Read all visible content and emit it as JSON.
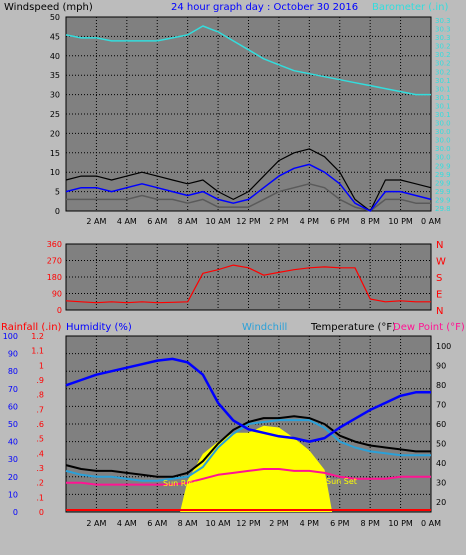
{
  "colors": {
    "background": "#bcbcbc",
    "plot_background": "#808080",
    "grid": "#000000",
    "windspeed_avg": "#0000ff",
    "windspeed_gust": "#000000",
    "windspeed_low": "#5a5a5a",
    "barometer": "#33dddd",
    "wind_direction": "#ff0000",
    "humidity": "#0000ff",
    "windchill": "#2aa0d8",
    "temperature": "#000000",
    "dew_point": "#ff1493",
    "rainfall": "#ff0000",
    "solar": "#ffff00"
  },
  "header": {
    "windspeed_label": "Windspeed (mph)",
    "date_title": "24 hour graph day : October 30 2016",
    "barometer_label": "Barometer (.in)"
  },
  "labels": {
    "rainfall": "Rainfall (.in)",
    "humidity": "Humidity (%)",
    "windchill": "Windchill",
    "temperature": "Temperature (°F)",
    "dew_point": "Dew Point (°F)",
    "sunrise": "Sun Rise",
    "sunset": "Sun Set"
  },
  "chart_data": [
    {
      "type": "line",
      "name": "windspeed",
      "ylabel": "Windspeed (mph)",
      "ylim": [
        0,
        50
      ],
      "y_ticks": [
        0,
        5,
        10,
        15,
        20,
        25,
        30,
        35,
        40,
        45,
        50
      ],
      "x_ticks": [
        "2 AM",
        "4 AM",
        "6 AM",
        "8 AM",
        "10 AM",
        "12 PM",
        "2 PM",
        "4 PM",
        "6 PM",
        "8 PM",
        "10 PM",
        "0 AM"
      ],
      "x_hours": [
        0,
        1,
        2,
        3,
        4,
        5,
        6,
        7,
        8,
        9,
        10,
        11,
        12,
        13,
        14,
        15,
        16,
        17,
        18,
        19,
        20,
        21,
        22,
        23,
        24
      ],
      "series": [
        {
          "values": [
            5,
            6,
            6,
            5,
            6,
            7,
            6,
            5,
            4,
            5,
            3,
            2,
            3,
            6,
            9,
            11,
            12,
            10,
            7,
            2,
            0,
            5,
            5,
            4,
            3
          ]
        },
        {
          "values": [
            8,
            9,
            9,
            8,
            9,
            10,
            9,
            8,
            7,
            8,
            5,
            3,
            5,
            9,
            13,
            15,
            16,
            14,
            10,
            3,
            0,
            8,
            8,
            7,
            6
          ]
        },
        {
          "values": [
            3,
            3,
            3,
            3,
            3,
            4,
            3,
            3,
            2,
            3,
            1,
            1,
            1,
            3,
            5,
            6,
            7,
            6,
            3,
            1,
            0,
            3,
            3,
            2,
            2
          ]
        },
        {
          "values": [
            30.39,
            30.38,
            30.38,
            30.37,
            30.37,
            30.37,
            30.37,
            30.38,
            30.39,
            30.42,
            30.4,
            30.37,
            30.34,
            30.31,
            30.29,
            30.27,
            30.26,
            30.25,
            30.24,
            30.23,
            30.22,
            30.21,
            30.2,
            30.19,
            30.19
          ]
        }
      ],
      "y2_ticks": [
        "29.8",
        "29.9",
        "29.9",
        "29.9",
        "29.9",
        "29.9",
        "30.0",
        "30.0",
        "30.0",
        "30.0",
        "30.0",
        "30.1",
        "30.1",
        "30.1",
        "30.1",
        "30.1",
        "30.2",
        "30.2",
        "30.2",
        "30.2",
        "30.3",
        "30.3",
        "30.3"
      ],
      "y2lim": [
        29.8,
        30.45
      ]
    },
    {
      "type": "line",
      "name": "wind_direction",
      "y_ticks": [
        0,
        90,
        180,
        270,
        360
      ],
      "ylim": [
        0,
        360
      ],
      "compass_ticks": [
        "N",
        "W",
        "S",
        "E",
        "N"
      ],
      "x_hours": [
        0,
        1,
        2,
        3,
        4,
        5,
        6,
        7,
        8,
        9,
        10,
        11,
        12,
        13,
        14,
        15,
        16,
        17,
        18,
        19,
        20,
        21,
        22,
        23,
        24
      ],
      "series": [
        {
          "values": [
            50,
            45,
            40,
            45,
            40,
            45,
            40,
            42,
            45,
            200,
            220,
            245,
            230,
            190,
            205,
            220,
            230,
            235,
            230,
            230,
            60,
            45,
            50,
            45,
            45
          ]
        }
      ]
    },
    {
      "type": "line",
      "name": "temperature_humidity",
      "x_ticks": [
        "2 AM",
        "4 AM",
        "6 AM",
        "8 AM",
        "10 AM",
        "12 PM",
        "2 PM",
        "4 PM",
        "6 PM",
        "8 PM",
        "10 PM",
        "0 AM"
      ],
      "rainfall_ticks": [
        "0",
        ".1",
        ".2",
        ".3",
        ".4",
        ".5",
        ".6",
        ".7",
        ".8",
        ".9",
        "1",
        "1.1",
        "1.2"
      ],
      "humidity_ticks": [
        0,
        10,
        20,
        30,
        40,
        50,
        60,
        70,
        80,
        90,
        100
      ],
      "temp_ticks": [
        20,
        30,
        40,
        50,
        60,
        70,
        80,
        90,
        100
      ],
      "humidity_ylim": [
        0,
        100
      ],
      "temp_ylim": [
        15,
        105
      ],
      "x_hours": [
        0,
        1,
        2,
        3,
        4,
        5,
        6,
        7,
        8,
        9,
        10,
        11,
        12,
        13,
        14,
        15,
        16,
        17,
        18,
        19,
        20,
        21,
        22,
        23,
        24
      ],
      "series": [
        {
          "values": [
            72,
            75,
            78,
            80,
            82,
            84,
            86,
            87,
            85,
            78,
            62,
            52,
            47,
            45,
            43,
            42,
            40,
            42,
            48,
            53,
            58,
            62,
            66,
            68,
            68
          ]
        },
        {
          "values": [
            39,
            37,
            36,
            36,
            35,
            34,
            33,
            33,
            35,
            41,
            50,
            57,
            61,
            63,
            63,
            64,
            63,
            60,
            54,
            51,
            49,
            48,
            47,
            46,
            46
          ]
        },
        {
          "values": [
            36,
            34,
            33,
            33,
            32,
            31,
            31,
            32,
            33,
            38,
            48,
            55,
            60,
            61,
            62,
            62,
            62,
            58,
            51,
            48,
            46,
            45,
            44,
            44,
            44
          ]
        },
        {
          "values": [
            30,
            30,
            29,
            29,
            29,
            29,
            29,
            29,
            30,
            32,
            34,
            35,
            36,
            37,
            37,
            36,
            36,
            35,
            33,
            32,
            32,
            32,
            33,
            33,
            33
          ]
        },
        {
          "values": [
            0,
            0,
            0,
            0,
            0,
            0,
            0,
            0,
            0,
            0,
            0,
            0,
            0,
            0,
            0,
            0,
            0,
            0,
            0,
            0,
            0,
            0,
            0,
            0,
            0
          ]
        }
      ],
      "solar_start_hour": 7.5,
      "solar_end_hour": 17.5,
      "solar_values": [
        0,
        0,
        0,
        0,
        0,
        0,
        0,
        0,
        18,
        33,
        40,
        45,
        45,
        49,
        48,
        42,
        35,
        24,
        0,
        0,
        0,
        0,
        0,
        0,
        0
      ]
    }
  ]
}
